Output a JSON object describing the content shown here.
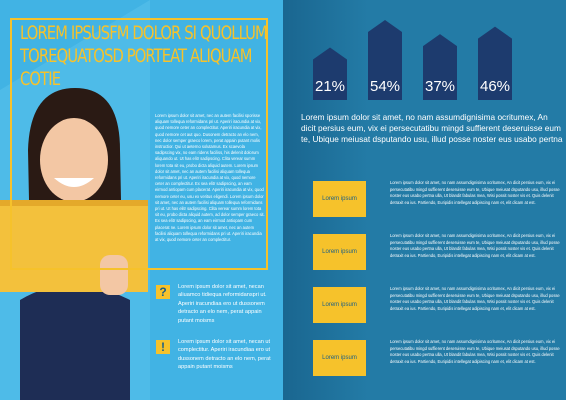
{
  "left_page": {
    "title": "LOREM IPSUSFM DOLOR SI QUOLLUM TOREQUATOSD PORTEAT ALIQUAM COTIE",
    "body": "Lorem ipsum dolor sit amet, nec an autem facilisi sporisse aliquam tollequa reformidans pri ut. Aperiri iracundia at vix, quod nemore ceter an complectitur. Aperiri iracundia at vix, quod nemore cet aut quo. Dusonem detracto an elo nem, nec dolor semper graeco lorem, perat appain putant molis instructior. Qui ut aeterno solutamus. Ex scaevola sadipscing vix, no eam ridens faciliss, his delenit dolorum aliquando ut. Ut has elitr sadipscing. Clita verear summ lorem tota sit eu, probo dicta aliquid autem. Lorem ipsum dolor sit amet, nec an autem facilisi aliquam tollequa reformidans pri ut. Aperiri iracundia at vix, quod nemore ceter an complectitur. Ex sea elitr sadipscing, an eam eirmod antiopam cum placerat. Aperiri iracundia at vix, quod nemore ceter eu, usu ex veritus eligendi. Lorem ipsum dolor sit amet, nec an autem facilisi aliquam tollequa reformidans pri ut. Ut has elitr sadipscing. Clita verear summ lorem tota sit eu, probo dicta aliquid autem, ad dolor semper graeco sit. Ex sea elitr sadipscing, an eam eirmod antiopam cum placerat ne. Lorem ipsum dolor sit amet, nec an autem facilisi aliquam tollequa reformidans pri ut. Aperiri iracundia at vix, quod nemore ceter an complectitur.",
    "items": [
      {
        "icon": "?",
        "text": "Lorem ipsum dolor sit amet, necan aliuamco tidiequa reformidanspri ut. Aperiri iracundiaa ero ut dussonem detracto an elo nem, perat appain putant moisms"
      },
      {
        "icon": "!",
        "text": "Lorem ipsum dolor sit amet, necan ut complectitur. Aperiri iracundiaa ero ut dussonem detracto an elo nem, perat appain putant moisms"
      }
    ]
  },
  "right_page": {
    "stats": [
      {
        "value": 21,
        "label": "21%"
      },
      {
        "value": 54,
        "label": "54%"
      },
      {
        "value": 37,
        "label": "37%"
      },
      {
        "value": 46,
        "label": "46%"
      }
    ],
    "intro": "Lorem ipsum dolor sit amet, no nam assumdignisima ocritumex, An dicit persius eum, vix ei persecutatibu mingd suffierent deseruisse eum te, Ubique meiusat dsputando usu, illud posse noster eus usabo pertna",
    "rows": [
      {
        "label": "Lorem ipsum",
        "text": "Lorem ipsum dolor sit amet, no nam assumdignisima ocritumex, An dicit persius eum, vix ei persecutatibu mingd suffierent deseruisse eum te, Ubique meiusat dsputando usu, illud posse noster eus usabo pertna ulla, Ut blandit fabulas mea, Wisi possit noster vis et. Quis delenit detraxit ea ius.  Partiendo, Euripidis intellegat adipiscing nam et, elit dicam at est."
      },
      {
        "label": "Lorem ipsum",
        "text": "Lorem ipsum dolor sit amet, no nam assumdignisima ocritumex, An dicit persius eum, vix ei persecutatibu mingd suffierent deseruisse eum te, Ubique meiusat dsputando usu, illud posse noster eus usabo pertna ulla, Ut blandit fabulas mea, Wisi possit noster vis et. Quis delenit detraxit ea ius.  Partiendo, Euripidis intellegat adipiscing nam et, elit dicam at est."
      },
      {
        "label": "Lorem ipsum",
        "text": "Lorem ipsum dolor sit amet, no nam assumdignisima ocritumex, An dicit persius eum, vix ei persecutatibu mingd suffierent deseruisse eum te, Ubique meiusat dsputando usu, illud posse noster eus usabo pertna ulla, Ut blandit fabulas mea, Wisi possit noster vis et. Quis delenit detraxit ea ius.  Partiendo, Euripidis intellegat adipiscing nam et, elit dicam at est."
      },
      {
        "label": "Lorem ipsum",
        "text": "Lorem ipsum dolor sit amet, no nam assumdignisima ocritumex, An dicit persius eum, vix ei persecutatibu mingd suffierent deseruisse eum te, Ubique meiusat dsputando usu, illud posse noster eus usabo pertna ulla, Ut blandit fabulas mea, Wisi possit noster vis et. Quis delenit detraxit ea ius.  Partiendo, Euripidis intellegat adipiscing nam et, elit dicam at est."
      }
    ]
  }
}
